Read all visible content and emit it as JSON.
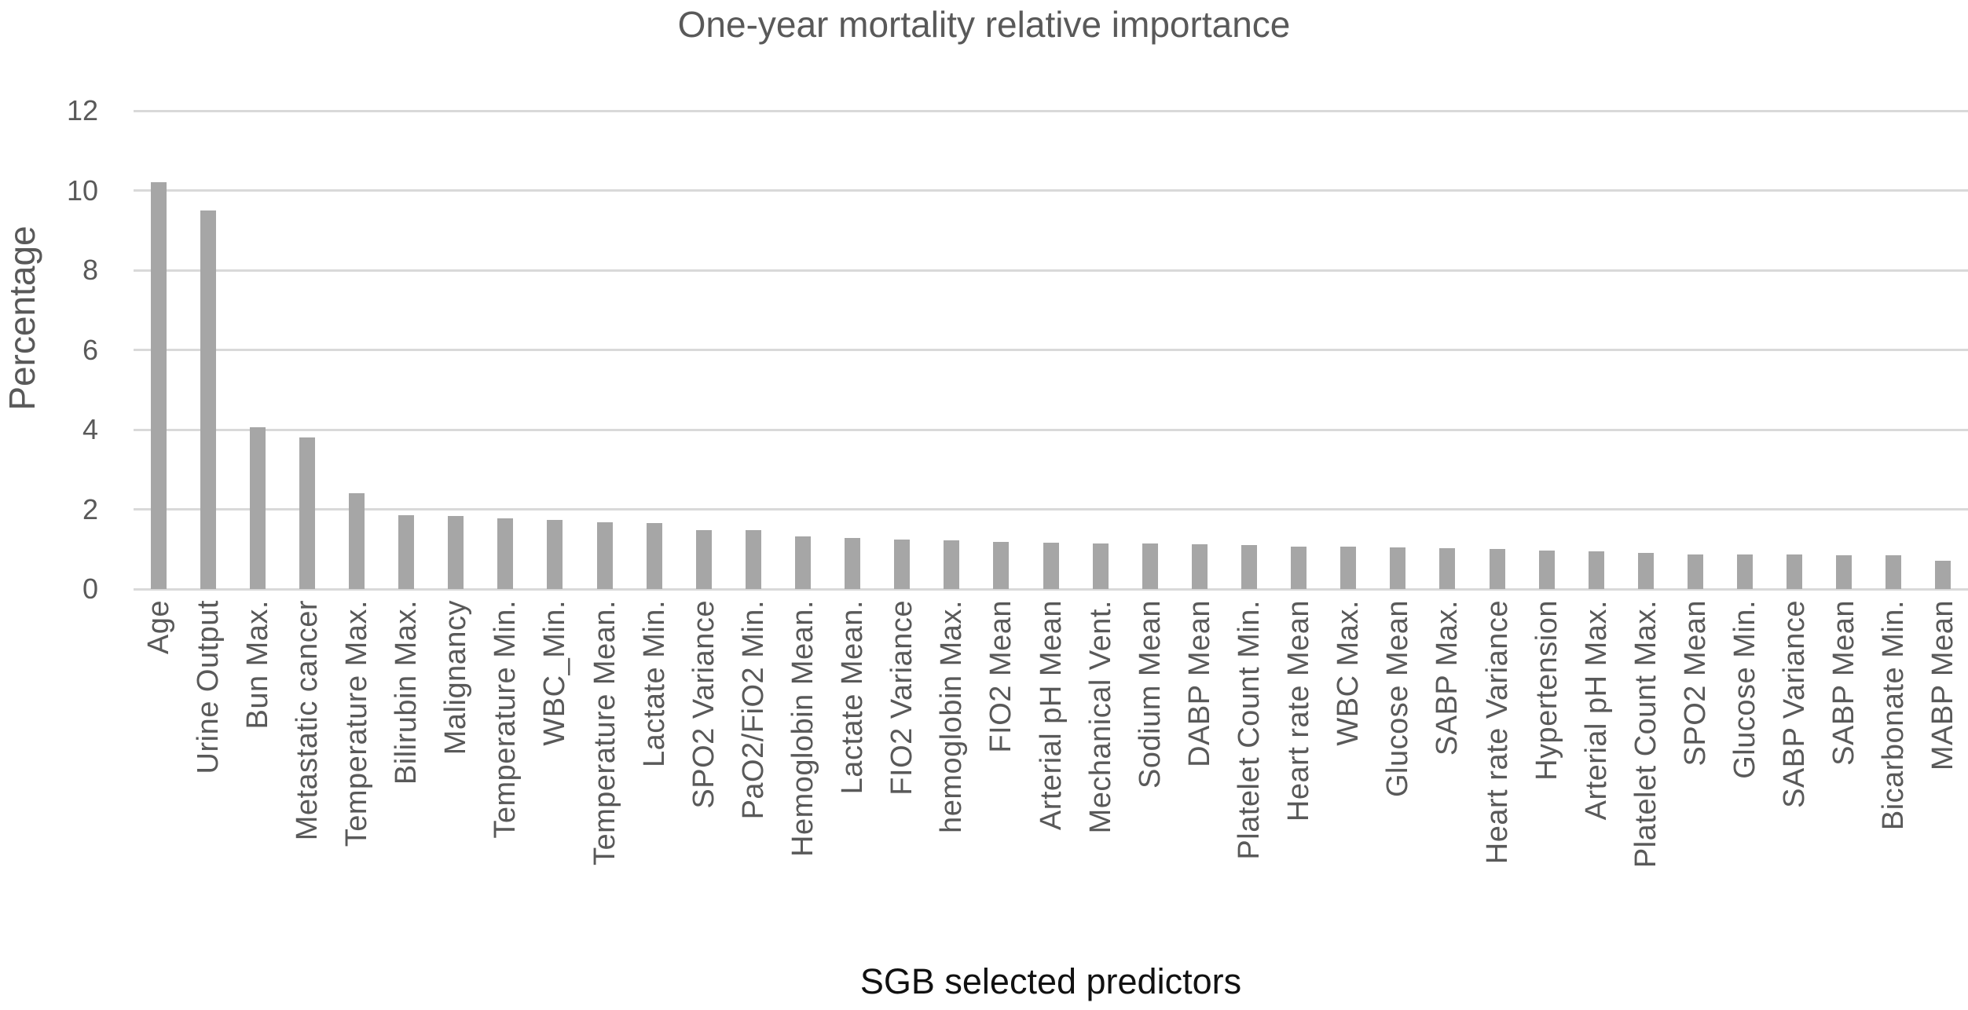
{
  "chart_data": {
    "type": "bar",
    "title": "One-year mortality relative importance",
    "xlabel": "SGB selected predictors",
    "ylabel": "Percentage",
    "ylim": [
      0,
      12
    ],
    "yticks": [
      0,
      2,
      4,
      6,
      8,
      10,
      12
    ],
    "grid": true,
    "legend": "none",
    "bar_color": "#a6a6a6",
    "gridline_color": "#d9d9d9",
    "axis_text_color": "#595959",
    "xlabel_text_color": "#111111",
    "categories": [
      "Age",
      "Urine Output",
      "Bun Max.",
      "Metastatic cancer",
      "Temperature Max.",
      "Bilirubin Max.",
      "Malignancy",
      "Temperature Min.",
      "WBC_Min.",
      "Temperature Mean.",
      "Lactate Min.",
      "SPO2 Variance",
      "PaO2/FiO2 Min.",
      "Hemoglobin Mean.",
      "Lactate Mean.",
      "FIO2 Variance",
      "hemoglobin Max.",
      "FIO2 Mean",
      "Arterial pH Mean",
      "Mechanical Vent.",
      "Sodium Mean",
      "DABP Mean",
      "Platelet Count Min.",
      "Heart rate Mean",
      "WBC Max.",
      "Glucose Mean",
      "SABP Max.",
      "Heart rate Variance",
      "Hypertension",
      "Arterial pH Max.",
      "Platelet Count Max.",
      "SPO2 Mean",
      "Glucose Min.",
      "SABP Variance",
      "SABP Mean",
      "Bicarbonate Min.",
      "MABP Mean"
    ],
    "values": [
      10.2,
      9.5,
      4.05,
      3.8,
      2.4,
      1.86,
      1.84,
      1.77,
      1.73,
      1.67,
      1.65,
      1.48,
      1.47,
      1.33,
      1.29,
      1.25,
      1.22,
      1.18,
      1.17,
      1.15,
      1.14,
      1.12,
      1.11,
      1.07,
      1.06,
      1.04,
      1.03,
      1.0,
      0.96,
      0.94,
      0.9,
      0.87,
      0.86,
      0.86,
      0.85,
      0.85,
      0.7
    ]
  }
}
